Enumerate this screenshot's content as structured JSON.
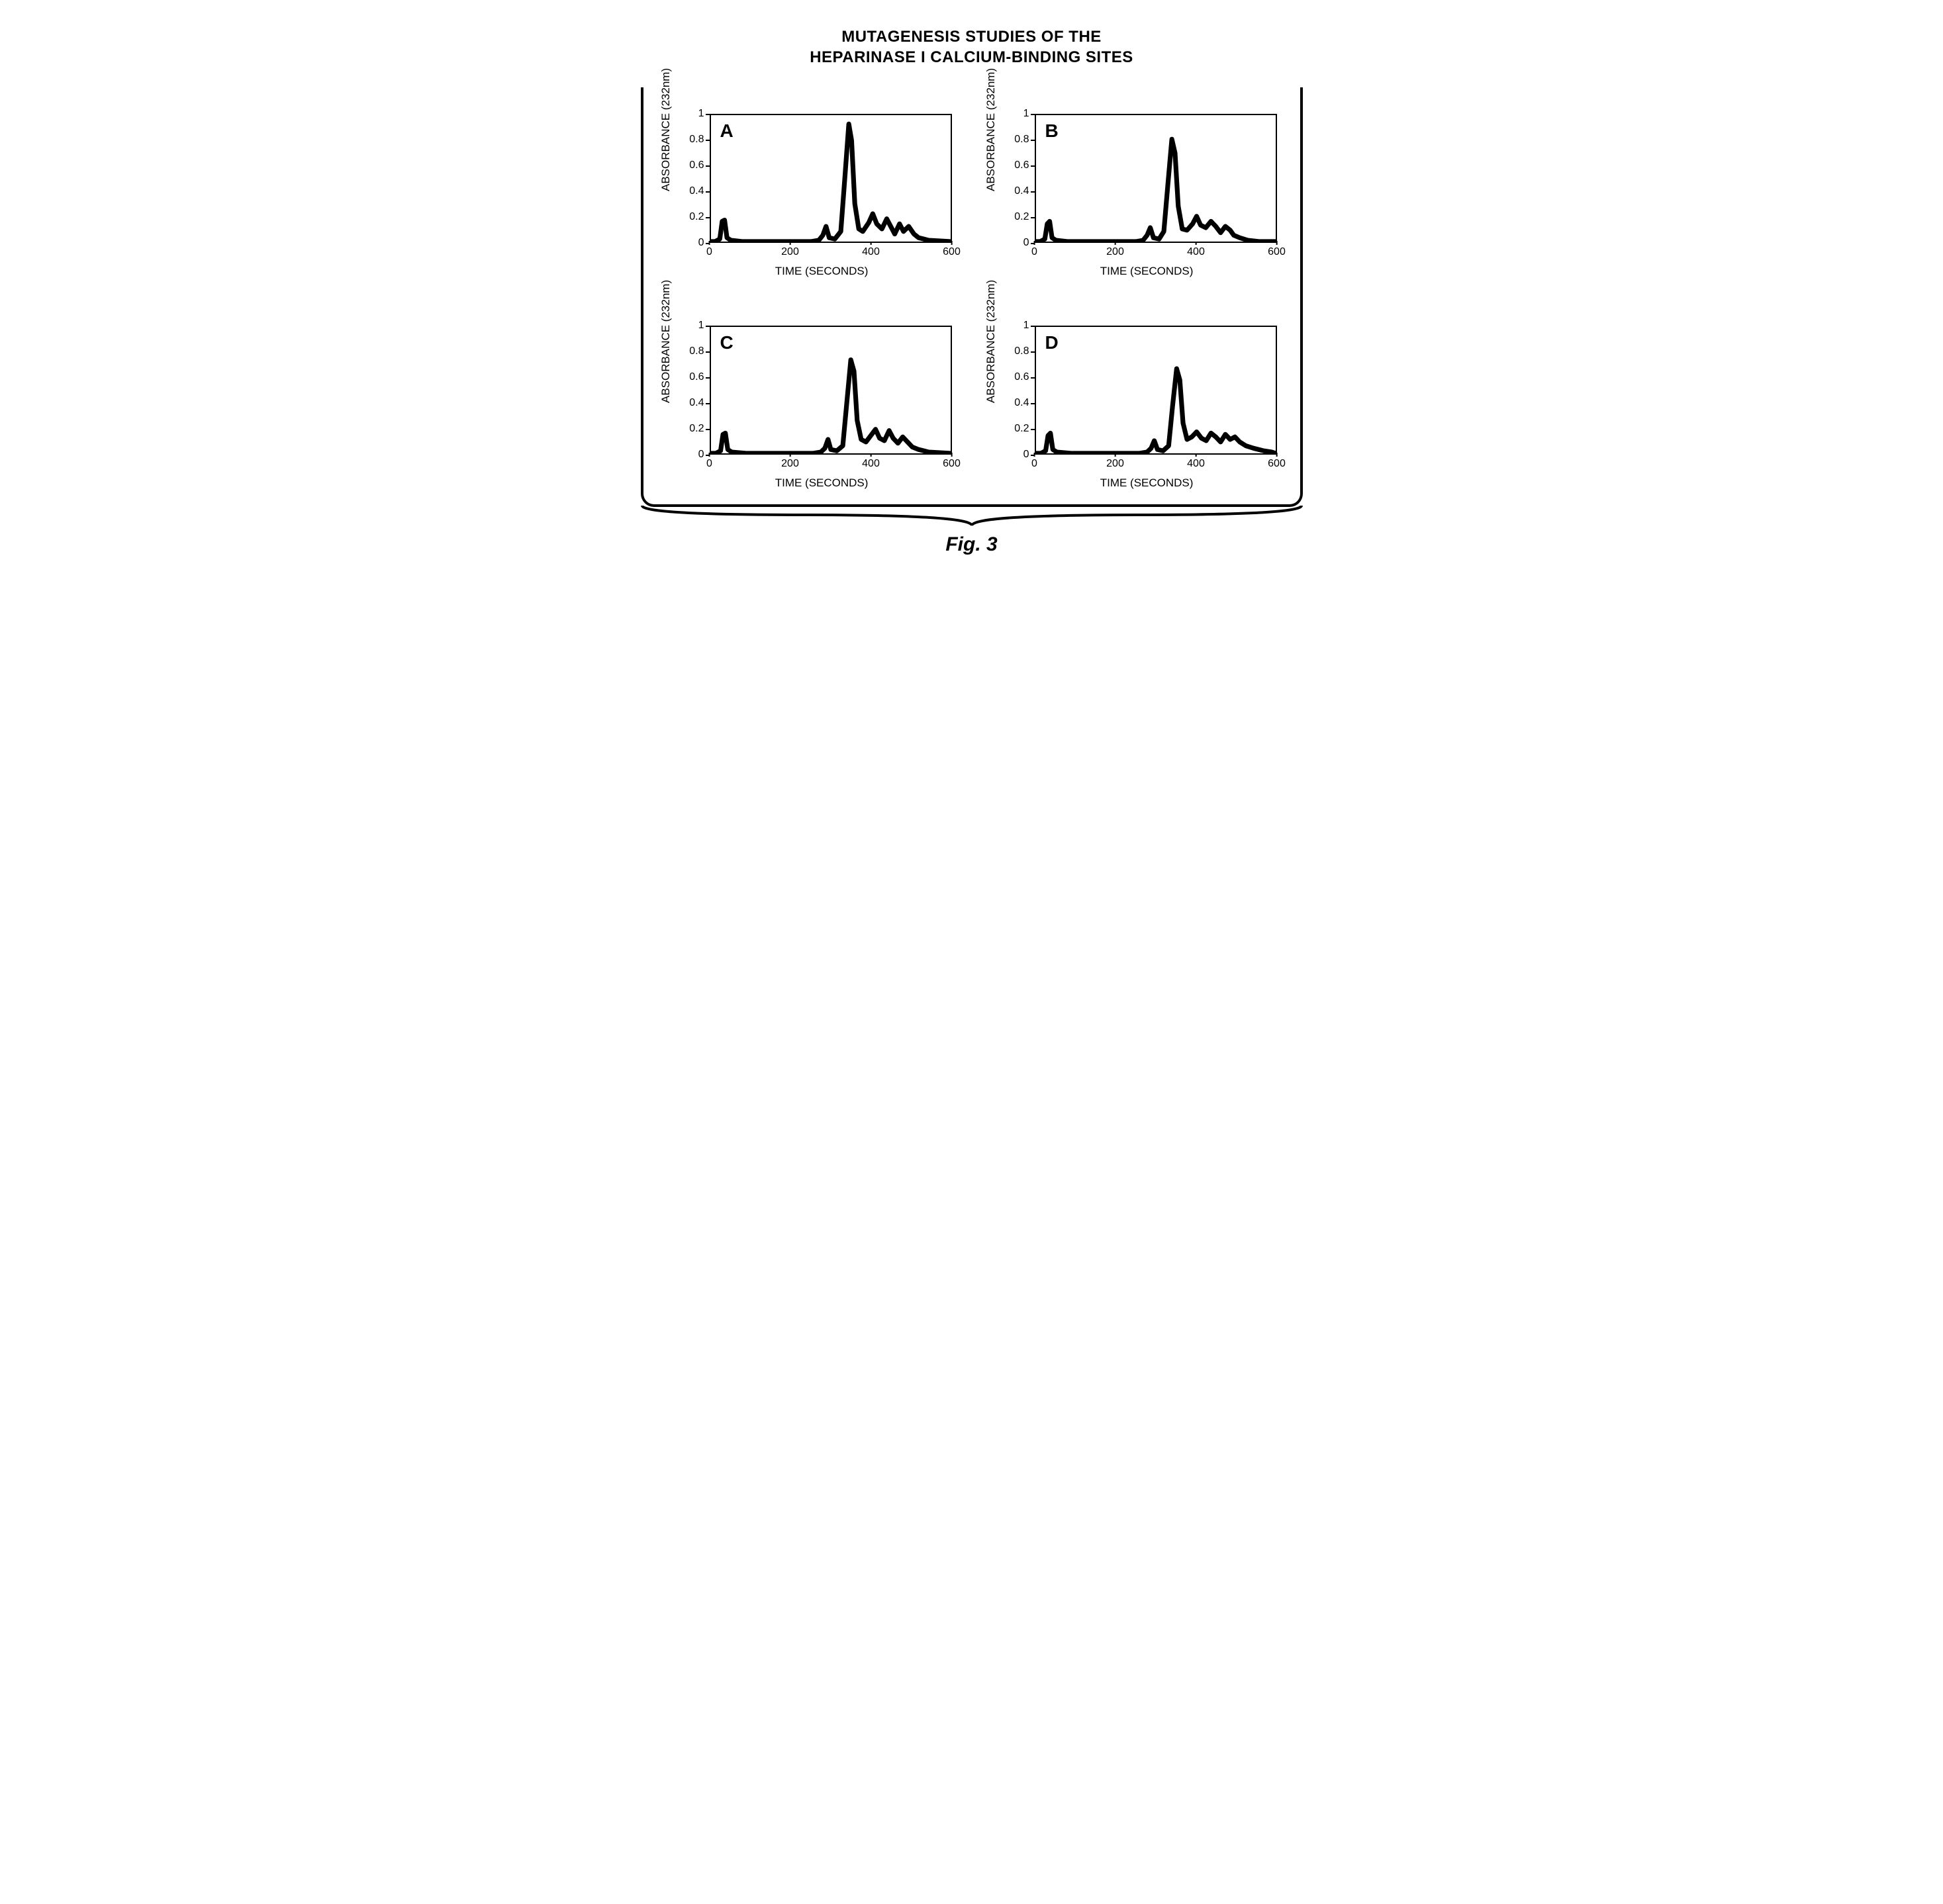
{
  "title_line1": "MUTAGENESIS STUDIES OF THE",
  "title_line2": "HEPARINASE I CALCIUM-BINDING SITES",
  "figure_caption": "Fig. 3",
  "axis": {
    "x_label": "TIME (SECONDS)",
    "y_label": "ABSORBANCE (232nm)",
    "xlim": [
      0,
      600
    ],
    "ylim": [
      0,
      1
    ],
    "x_ticks": [
      0,
      200,
      400,
      600
    ],
    "y_ticks": [
      0,
      0.2,
      0.4,
      0.6,
      0.8,
      1
    ]
  },
  "style": {
    "line_color": "#000000",
    "line_width": 2.5,
    "border_color": "#000000",
    "background_color": "#ffffff",
    "font_family": "Arial",
    "axis_fontsize": 17,
    "panel_letter_fontsize": 28
  },
  "panels": [
    {
      "letter": "A",
      "data": [
        [
          0,
          0.0
        ],
        [
          10,
          0.0
        ],
        [
          22,
          0.02
        ],
        [
          28,
          0.16
        ],
        [
          34,
          0.17
        ],
        [
          40,
          0.03
        ],
        [
          50,
          0.01
        ],
        [
          80,
          0.0
        ],
        [
          150,
          0.0
        ],
        [
          250,
          0.0
        ],
        [
          270,
          0.01
        ],
        [
          280,
          0.05
        ],
        [
          288,
          0.12
        ],
        [
          296,
          0.03
        ],
        [
          310,
          0.02
        ],
        [
          325,
          0.08
        ],
        [
          335,
          0.5
        ],
        [
          345,
          0.93
        ],
        [
          352,
          0.8
        ],
        [
          360,
          0.3
        ],
        [
          370,
          0.1
        ],
        [
          380,
          0.08
        ],
        [
          395,
          0.15
        ],
        [
          405,
          0.22
        ],
        [
          415,
          0.14
        ],
        [
          428,
          0.1
        ],
        [
          440,
          0.18
        ],
        [
          450,
          0.12
        ],
        [
          460,
          0.06
        ],
        [
          472,
          0.14
        ],
        [
          482,
          0.08
        ],
        [
          495,
          0.12
        ],
        [
          508,
          0.06
        ],
        [
          520,
          0.03
        ],
        [
          545,
          0.01
        ],
        [
          600,
          0.0
        ]
      ]
    },
    {
      "letter": "B",
      "data": [
        [
          0,
          0.0
        ],
        [
          10,
          0.0
        ],
        [
          22,
          0.02
        ],
        [
          28,
          0.14
        ],
        [
          34,
          0.16
        ],
        [
          40,
          0.03
        ],
        [
          50,
          0.01
        ],
        [
          80,
          0.0
        ],
        [
          150,
          0.0
        ],
        [
          250,
          0.0
        ],
        [
          268,
          0.01
        ],
        [
          278,
          0.05
        ],
        [
          286,
          0.11
        ],
        [
          294,
          0.03
        ],
        [
          308,
          0.02
        ],
        [
          320,
          0.08
        ],
        [
          330,
          0.45
        ],
        [
          340,
          0.81
        ],
        [
          348,
          0.7
        ],
        [
          356,
          0.28
        ],
        [
          366,
          0.1
        ],
        [
          378,
          0.09
        ],
        [
          392,
          0.14
        ],
        [
          402,
          0.2
        ],
        [
          412,
          0.13
        ],
        [
          425,
          0.11
        ],
        [
          438,
          0.16
        ],
        [
          450,
          0.12
        ],
        [
          462,
          0.07
        ],
        [
          474,
          0.12
        ],
        [
          486,
          0.09
        ],
        [
          495,
          0.05
        ],
        [
          510,
          0.03
        ],
        [
          530,
          0.01
        ],
        [
          560,
          0.0
        ],
        [
          600,
          0.0
        ]
      ]
    },
    {
      "letter": "C",
      "data": [
        [
          0,
          0.0
        ],
        [
          12,
          0.0
        ],
        [
          24,
          0.02
        ],
        [
          30,
          0.15
        ],
        [
          36,
          0.16
        ],
        [
          42,
          0.03
        ],
        [
          52,
          0.01
        ],
        [
          90,
          0.0
        ],
        [
          160,
          0.0
        ],
        [
          255,
          0.0
        ],
        [
          275,
          0.01
        ],
        [
          285,
          0.04
        ],
        [
          293,
          0.11
        ],
        [
          300,
          0.03
        ],
        [
          315,
          0.02
        ],
        [
          330,
          0.06
        ],
        [
          340,
          0.4
        ],
        [
          350,
          0.74
        ],
        [
          358,
          0.65
        ],
        [
          366,
          0.26
        ],
        [
          376,
          0.11
        ],
        [
          388,
          0.09
        ],
        [
          400,
          0.14
        ],
        [
          412,
          0.19
        ],
        [
          422,
          0.12
        ],
        [
          434,
          0.1
        ],
        [
          446,
          0.18
        ],
        [
          456,
          0.12
        ],
        [
          468,
          0.08
        ],
        [
          480,
          0.13
        ],
        [
          492,
          0.09
        ],
        [
          504,
          0.05
        ],
        [
          520,
          0.03
        ],
        [
          545,
          0.01
        ],
        [
          600,
          0.0
        ]
      ]
    },
    {
      "letter": "D",
      "data": [
        [
          0,
          0.0
        ],
        [
          12,
          0.0
        ],
        [
          24,
          0.02
        ],
        [
          30,
          0.14
        ],
        [
          36,
          0.16
        ],
        [
          42,
          0.03
        ],
        [
          52,
          0.01
        ],
        [
          90,
          0.0
        ],
        [
          160,
          0.0
        ],
        [
          258,
          0.0
        ],
        [
          278,
          0.01
        ],
        [
          288,
          0.04
        ],
        [
          296,
          0.1
        ],
        [
          304,
          0.03
        ],
        [
          318,
          0.02
        ],
        [
          332,
          0.06
        ],
        [
          342,
          0.38
        ],
        [
          352,
          0.67
        ],
        [
          360,
          0.58
        ],
        [
          368,
          0.24
        ],
        [
          378,
          0.11
        ],
        [
          390,
          0.13
        ],
        [
          402,
          0.17
        ],
        [
          414,
          0.12
        ],
        [
          426,
          0.1
        ],
        [
          438,
          0.16
        ],
        [
          450,
          0.13
        ],
        [
          462,
          0.09
        ],
        [
          474,
          0.15
        ],
        [
          486,
          0.11
        ],
        [
          498,
          0.13
        ],
        [
          510,
          0.09
        ],
        [
          525,
          0.06
        ],
        [
          545,
          0.04
        ],
        [
          570,
          0.02
        ],
        [
          590,
          0.01
        ],
        [
          600,
          0.0
        ]
      ]
    }
  ]
}
